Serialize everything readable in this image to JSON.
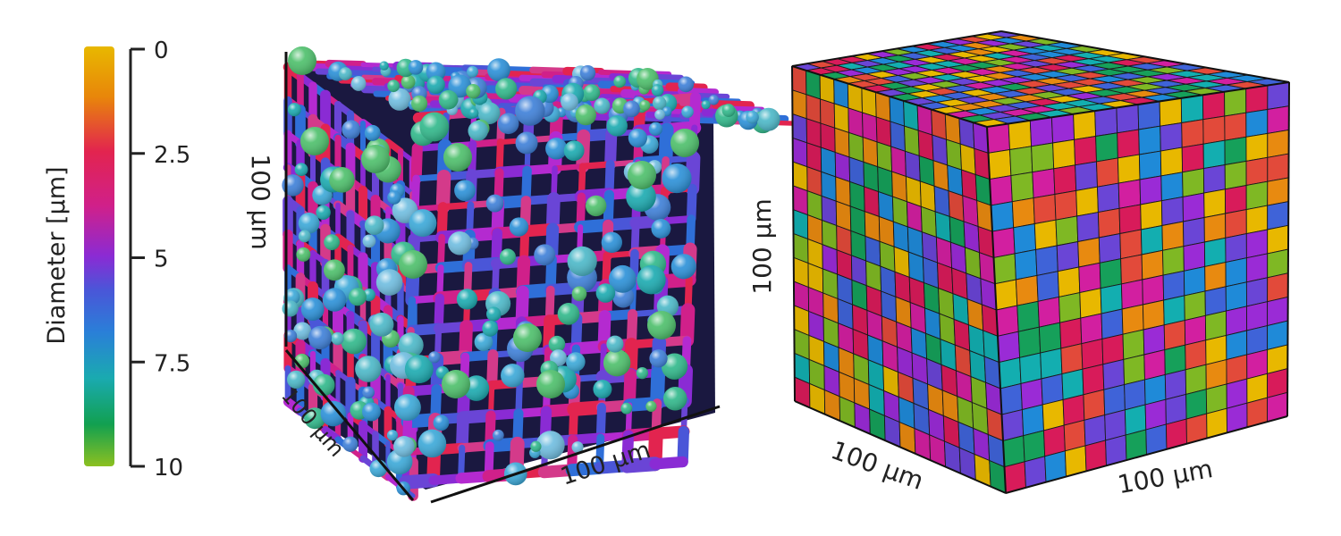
{
  "colorbar": {
    "title": "Diameter [µm]",
    "ticks": [
      "0",
      "2.5",
      "5",
      "7.5",
      "10"
    ],
    "colors": [
      "#e8b800",
      "#e8860a",
      "#e2244f",
      "#d0208a",
      "#8a2bd4",
      "#4a56d8",
      "#2a7fd8",
      "#1aaab0",
      "#12a050",
      "#8cc020"
    ]
  },
  "left_cube": {
    "axis_vertical_label": "100 µm",
    "axis_depth_label": "100 µm",
    "axis_width_label": "100 µm"
  },
  "right_cube": {
    "axis_vertical_label": "100 µm",
    "axis_depth_label": "100 µm",
    "axis_width_label": "100 µm",
    "palette": [
      "#e8b800",
      "#e88a10",
      "#e24a3a",
      "#d81b5a",
      "#d21fa0",
      "#9a2bd6",
      "#6a45d6",
      "#3f63d8",
      "#1f8ad8",
      "#13aeb0",
      "#16a05a",
      "#7fb824"
    ]
  }
}
